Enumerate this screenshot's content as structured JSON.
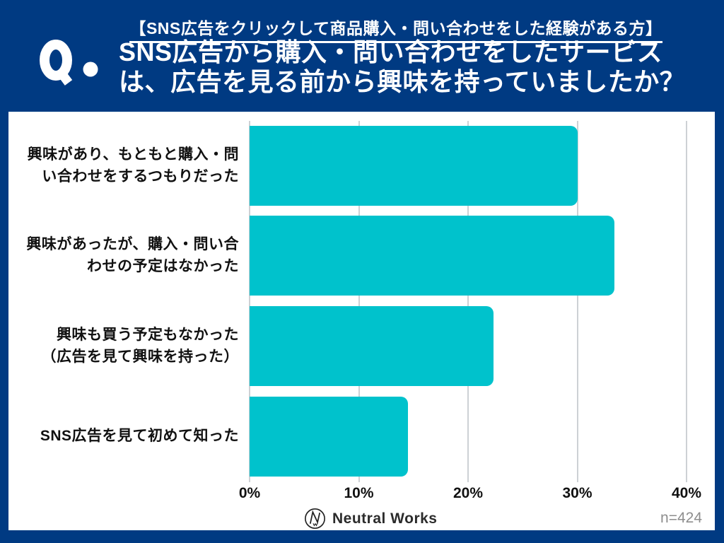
{
  "page": {
    "background_color": "#003a82",
    "panel_color": "#ffffff"
  },
  "header": {
    "q_mark": "Q.",
    "audience_note": "【SNS広告をクリックして商品購入・問い合わせをした経験がある方】",
    "title_line1": "SNS広告から購入・問い合わせをしたサービス",
    "title_line2": "は、広告を見る前から興味を持っていましたか？"
  },
  "chart_data": {
    "type": "bar",
    "orientation": "horizontal",
    "title": "SNS広告から購入・問い合わせをしたサービスは、広告を見る前から興味を持っていましたか？",
    "categories": [
      "興味があり、もともと購入・問い合わせをするつもりだった",
      "興味があったが、購入・問い合わせの予定はなかった",
      "興味も買う予定もなかった（広告を見て興味を持った）",
      "SNS広告を見て初めて知った"
    ],
    "category_lines": [
      [
        "興味があり、もともと購入・問",
        "い合わせをするつもりだった"
      ],
      [
        "興味があったが、購入・問い合",
        "わせの予定はなかった"
      ],
      [
        "興味も買う予定もなかった",
        "（広告を見て興味を持った）"
      ],
      [
        "SNS広告を見て初めて知った"
      ]
    ],
    "values": [
      30.0,
      33.4,
      22.3,
      14.5
    ],
    "unit": "%",
    "xlim": [
      0,
      40
    ],
    "xticks": [
      0,
      10,
      20,
      30,
      40
    ],
    "xtick_labels": [
      "0%",
      "10%",
      "20%",
      "30%",
      "40%"
    ],
    "grid": true,
    "legend": false,
    "bar_color": "#00c2cc",
    "gridline_color": "#cdd1d5",
    "label_color": "#111111"
  },
  "footer": {
    "brand": "Neutral Works",
    "brand_icon": "neutral-works-circle-n-logo",
    "sample_size": "n=424"
  }
}
